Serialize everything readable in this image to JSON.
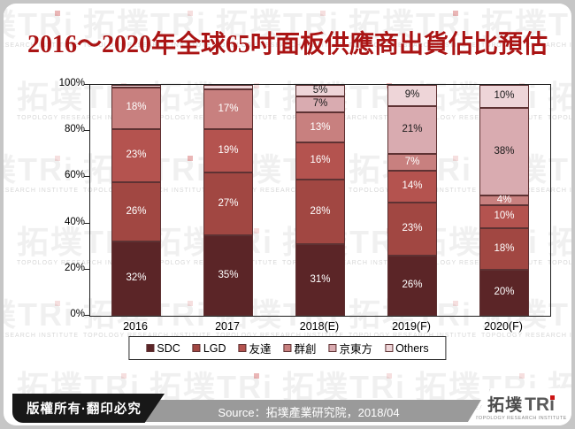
{
  "title": "2016～2020年全球65吋面板供應商出貨佔比預估",
  "chart_data": {
    "type": "bar",
    "stacked": true,
    "title": "2016～2020年全球65吋面板供應商出貨佔比預估",
    "categories": [
      "2016",
      "2017",
      "2018(E)",
      "2019(F)",
      "2020(F)"
    ],
    "series": [
      {
        "name": "SDC",
        "color": "#5b2527",
        "label_color": "#ffffff",
        "values": [
          32,
          35,
          31,
          26,
          20
        ]
      },
      {
        "name": "LGD",
        "color": "#a14742",
        "label_color": "#ffffff",
        "values": [
          26,
          27,
          28,
          23,
          18
        ]
      },
      {
        "name": "友達",
        "color": "#b4534f",
        "label_color": "#ffffff",
        "values": [
          23,
          19,
          16,
          14,
          10
        ]
      },
      {
        "name": "群創",
        "color": "#c8807f",
        "label_color": "#ffffff",
        "values": [
          18,
          17,
          13,
          7,
          4
        ]
      },
      {
        "name": "京東方",
        "color": "#d9abb0",
        "label_color": "#1a1a1a",
        "values": [
          0,
          0,
          7,
          21,
          38
        ]
      },
      {
        "name": "Others",
        "color": "#eed5d8",
        "label_color": "#1a1a1a",
        "values": [
          1,
          2,
          5,
          9,
          10
        ]
      }
    ],
    "xlabel": "",
    "ylabel": "",
    "ylim": [
      0,
      100
    ],
    "yticks": [
      {
        "v": 0,
        "label": "0%"
      },
      {
        "v": 20,
        "label": "20%"
      },
      {
        "v": 40,
        "label": "40%"
      },
      {
        "v": 60,
        "label": "60%"
      },
      {
        "v": 80,
        "label": "80%"
      },
      {
        "v": 100,
        "label": "100%"
      }
    ],
    "grid": false,
    "legend_position": "bottom",
    "min_label_value": 4,
    "value_suffix": "%"
  },
  "footer": {
    "copyright": "版權所有·翻印必究",
    "source": "Source：拓墣產業研究院，2018/04"
  },
  "logo": {
    "cjk": "拓墣",
    "latin": "TRi",
    "subtext": "TOPOLOGY RESEARCH INSTITUTE"
  },
  "watermark": {
    "text": "拓墣TRi",
    "subtext": "TOPOLOGY RESEARCH INSTITUTE"
  },
  "colors": {
    "title_red": "#aa1414",
    "segment_border": "#5e3233",
    "footer_gray": "#9a9a9a",
    "footer_black": "#181818",
    "logo_red": "#cc1414"
  }
}
